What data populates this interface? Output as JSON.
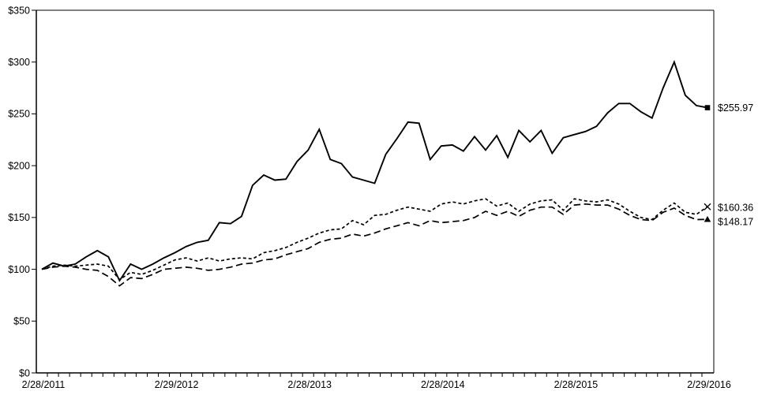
{
  "chart_data": {
    "type": "line",
    "title": "",
    "grid": "off",
    "legend": "none",
    "background_color": "#ffffff",
    "line_color": "#000000",
    "x_axis": {
      "tick_labels": [
        "2/28/2011",
        "2/29/2012",
        "2/28/2013",
        "2/28/2014",
        "2/28/2015",
        "2/29/2016"
      ],
      "tick_months": [
        0,
        12,
        24,
        36,
        48,
        60
      ],
      "minor_tick_every_months": 1,
      "total_months": 60
    },
    "y_axis": {
      "tick_labels": [
        "$0",
        "$50",
        "$100",
        "$150",
        "$200",
        "$250",
        "$300",
        "$350"
      ],
      "tick_values": [
        0,
        50,
        100,
        150,
        200,
        250,
        300,
        350
      ],
      "min": 0,
      "max": 350
    },
    "series": [
      {
        "id": "solid-line",
        "line_style": "solid",
        "end_marker": "filled-square",
        "end_label": "$255.97",
        "end_value": 255.97,
        "values": [
          100,
          106,
          103,
          105,
          112,
          118,
          112,
          89,
          105,
          100,
          105,
          111,
          116,
          122,
          126,
          128,
          145,
          144,
          151,
          181,
          191,
          186,
          187,
          204,
          215,
          235,
          206,
          202,
          189,
          186,
          183,
          211,
          226,
          242,
          241,
          206,
          219,
          220,
          214,
          228,
          215,
          229,
          208,
          234,
          223,
          234,
          212,
          227,
          230,
          233,
          238,
          251,
          260,
          260,
          252,
          246,
          275,
          300,
          268,
          258,
          255.97
        ]
      },
      {
        "id": "short-dash-line",
        "line_style": "short-dash",
        "end_marker": "x-cross",
        "end_label": "$160.36",
        "end_value": 160.36,
        "values": [
          100,
          103,
          104,
          103,
          104,
          105,
          103,
          90,
          97,
          95,
          99,
          104,
          109,
          111,
          108,
          111,
          108,
          110,
          111,
          110,
          116,
          118,
          121,
          126,
          130,
          135,
          138,
          139,
          147,
          143,
          152,
          153,
          157,
          160,
          158,
          156,
          163,
          165,
          163,
          166,
          168,
          161,
          164,
          156,
          163,
          166,
          167,
          157,
          168,
          166,
          165,
          167,
          163,
          156,
          150,
          148,
          157,
          164,
          155,
          153,
          160.36
        ]
      },
      {
        "id": "long-dash-line",
        "line_style": "long-dash",
        "end_marker": "filled-triangle",
        "end_label": "$148.17",
        "end_value": 148.17,
        "values": [
          100,
          102,
          103,
          102,
          100,
          99,
          93,
          84,
          92,
          91,
          95,
          100,
          101,
          102,
          101,
          99,
          100,
          102,
          105,
          106,
          109,
          110,
          114,
          117,
          120,
          126,
          129,
          130,
          134,
          132,
          135,
          139,
          142,
          145,
          142,
          147,
          145,
          146,
          147,
          150,
          156,
          152,
          156,
          151,
          157,
          160,
          160,
          153,
          162,
          163,
          162,
          162,
          158,
          152,
          148,
          147,
          155,
          159,
          152,
          148,
          148.17
        ]
      }
    ]
  }
}
